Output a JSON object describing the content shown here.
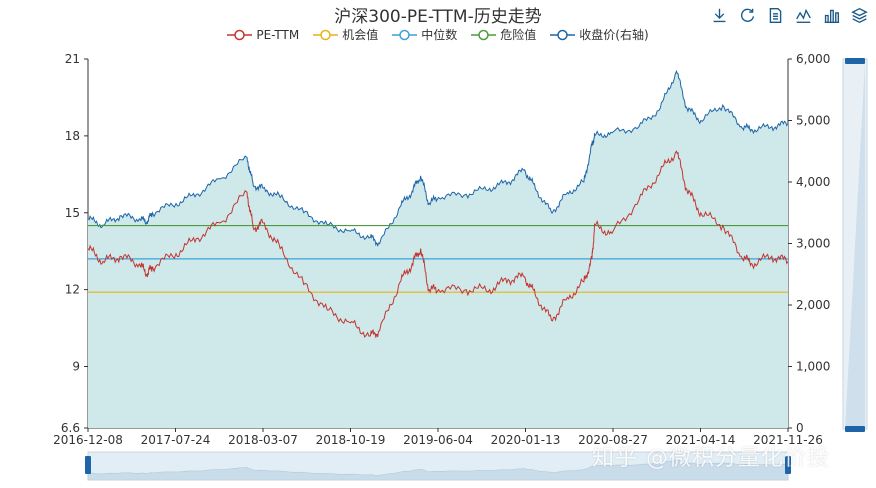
{
  "title": "沪深300-PE-TTM-历史走势",
  "toolbox": [
    "download-icon",
    "refresh-icon",
    "data-view-icon",
    "line-chart-icon",
    "bar-chart-icon",
    "stack-icon"
  ],
  "watermark": "知乎 @微积分量化价投",
  "chart_data": {
    "type": "line",
    "title": "沪深300-PE-TTM-历史走势",
    "x_start": "2016-12-08",
    "x_end": "2021-11-26",
    "x_ticks": [
      "2016-12-08",
      "2017-07-24",
      "2018-03-07",
      "2018-10-19",
      "2019-06-04",
      "2020-01-13",
      "2020-08-27",
      "2021-04-14",
      "2021-11-26"
    ],
    "y_left": {
      "min": 6.6,
      "max": 21,
      "ticks": [
        "6.6",
        "9",
        "12",
        "15",
        "18",
        "21"
      ]
    },
    "y_right": {
      "min": 0,
      "max": 6000,
      "ticks": [
        "0",
        "1,000",
        "2,000",
        "3,000",
        "4,000",
        "5,000",
        "6,000"
      ]
    },
    "grid": false,
    "legend_position": "top-center",
    "series": [
      {
        "name": "PE-TTM",
        "axis": "left",
        "color": "#c23531",
        "x": [
          "2016-12-08",
          "2017-01-16",
          "2017-03-01",
          "2017-04-20",
          "2017-05-10",
          "2017-05-24",
          "2017-07-24",
          "2017-09-15",
          "2017-11-15",
          "2018-01-24",
          "2018-02-09",
          "2018-03-07",
          "2018-04-20",
          "2018-06-20",
          "2018-08-20",
          "2018-10-19",
          "2018-12-10",
          "2019-01-03",
          "2019-02-25",
          "2019-03-28",
          "2019-04-19",
          "2019-05-10",
          "2019-06-04",
          "2019-08-15",
          "2019-10-15",
          "2019-12-02",
          "2020-01-13",
          "2020-02-10",
          "2020-03-23",
          "2020-04-30",
          "2020-06-15",
          "2020-07-06",
          "2020-07-13",
          "2020-08-27",
          "2020-11-05",
          "2020-12-30",
          "2021-02-10",
          "2021-03-09",
          "2021-04-14",
          "2021-06-10",
          "2021-07-28",
          "2021-08-25",
          "2021-10-15",
          "2021-11-26"
        ],
        "y": [
          13.6,
          13.1,
          13.3,
          13.0,
          12.6,
          12.9,
          13.4,
          14.0,
          14.6,
          15.8,
          14.4,
          14.6,
          13.6,
          12.2,
          11.2,
          10.7,
          10.2,
          10.4,
          12.3,
          13.0,
          13.6,
          12.0,
          12.0,
          12.0,
          12.0,
          12.4,
          12.5,
          11.8,
          10.8,
          11.6,
          12.3,
          13.2,
          14.5,
          14.2,
          15.5,
          16.6,
          17.4,
          15.9,
          15.0,
          14.5,
          13.3,
          13.0,
          13.3,
          13.1
        ]
      },
      {
        "name": "机会值",
        "axis": "left",
        "color": "#e6b41a",
        "x": [
          "2016-12-08",
          "2021-11-26"
        ],
        "y": [
          11.9,
          11.9
        ]
      },
      {
        "name": "中位数",
        "axis": "left",
        "color": "#3ba2d6",
        "x": [
          "2016-12-08",
          "2021-11-26"
        ],
        "y": [
          13.2,
          13.2
        ]
      },
      {
        "name": "危险值",
        "axis": "left",
        "color": "#4e9a3f",
        "x": [
          "2016-12-08",
          "2021-11-26"
        ],
        "y": [
          14.5,
          14.5
        ]
      },
      {
        "name": "收盘价(右轴)",
        "axis": "right",
        "color": "#1e65a8",
        "x": [
          "2016-12-08",
          "2017-01-16",
          "2017-03-01",
          "2017-04-20",
          "2017-05-10",
          "2017-05-24",
          "2017-07-24",
          "2017-09-15",
          "2017-11-15",
          "2018-01-24",
          "2018-02-09",
          "2018-03-07",
          "2018-04-20",
          "2018-06-20",
          "2018-08-20",
          "2018-10-19",
          "2018-12-10",
          "2019-01-03",
          "2019-02-25",
          "2019-03-28",
          "2019-04-19",
          "2019-05-10",
          "2019-06-04",
          "2019-08-15",
          "2019-10-15",
          "2019-12-02",
          "2020-01-13",
          "2020-02-10",
          "2020-03-23",
          "2020-04-30",
          "2020-06-15",
          "2020-07-06",
          "2020-07-13",
          "2020-08-27",
          "2020-11-05",
          "2020-12-30",
          "2021-02-10",
          "2021-03-09",
          "2021-04-14",
          "2021-06-10",
          "2021-07-28",
          "2021-08-25",
          "2021-10-15",
          "2021-11-26"
        ],
        "y": [
          3400,
          3300,
          3450,
          3400,
          3350,
          3500,
          3650,
          3800,
          4050,
          4400,
          3950,
          3900,
          3750,
          3500,
          3300,
          3200,
          3100,
          3000,
          3600,
          3850,
          4100,
          3650,
          3750,
          3800,
          3900,
          4000,
          4200,
          3900,
          3500,
          3800,
          4000,
          4600,
          4750,
          4800,
          4900,
          5200,
          5800,
          5200,
          5000,
          5250,
          4900,
          4850,
          4900,
          4950
        ]
      }
    ]
  }
}
